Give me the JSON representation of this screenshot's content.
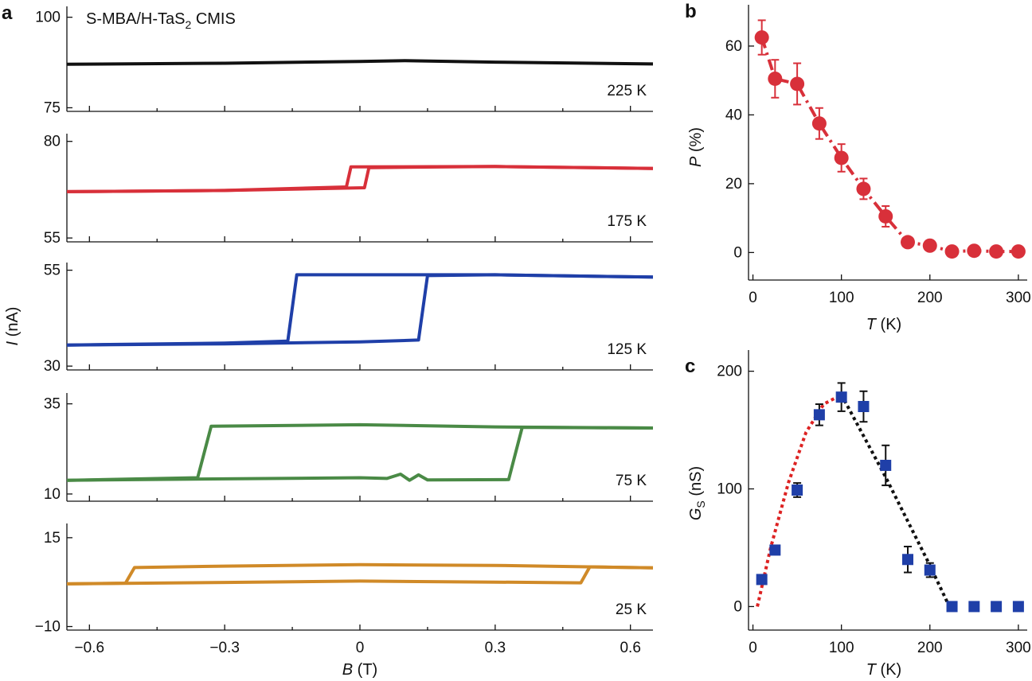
{
  "panels": {
    "a": "a",
    "b": "b",
    "c": "c"
  },
  "chart_data": [
    {
      "id": "a",
      "type": "line",
      "annotation": "S-MBA/H-TaS2 CMIS",
      "annotation_main": "S-MBA/H-TaS",
      "annotation_sub": "2",
      "annotation_tail": " CMIS",
      "xlabel_italic": "B",
      "xlabel_unit": " (T)",
      "ylabel_italic": "I",
      "ylabel_unit": " (nA)",
      "xlim": [
        -0.65,
        0.65
      ],
      "xticks": [
        -0.6,
        -0.3,
        0,
        0.3,
        0.6
      ],
      "xtick_labels": [
        "−0.6",
        "−0.3",
        "0",
        "0.3",
        "0.6"
      ],
      "subplots": [
        {
          "label": "225 K",
          "color": "#111111",
          "ylim": [
            74,
            103
          ],
          "yticks": [
            75,
            100
          ],
          "ytick_labels": [
            "75",
            "100"
          ],
          "sweep_up": [
            [
              -0.65,
              87.0
            ],
            [
              -0.3,
              87.3
            ],
            [
              0.0,
              87.8
            ],
            [
              0.1,
              88.0
            ],
            [
              0.3,
              87.6
            ],
            [
              0.65,
              87.1
            ]
          ],
          "sweep_down": []
        },
        {
          "label": "175 K",
          "color": "#d8303a",
          "ylim": [
            54,
            82
          ],
          "yticks": [
            55,
            80
          ],
          "ytick_labels": [
            "55",
            "80"
          ],
          "sweep_up": [
            [
              -0.65,
              67.0
            ],
            [
              -0.3,
              67.3
            ],
            [
              0.01,
              68.0
            ],
            [
              0.02,
              73.2
            ],
            [
              0.3,
              73.5
            ],
            [
              0.65,
              73.0
            ]
          ],
          "sweep_down": [
            [
              0.65,
              73.0
            ],
            [
              0.3,
              73.5
            ],
            [
              -0.02,
              73.4
            ],
            [
              -0.03,
              68.2
            ],
            [
              -0.3,
              67.3
            ],
            [
              -0.65,
              67.0
            ]
          ]
        },
        {
          "label": "125 K",
          "color": "#1f3fa8",
          "ylim": [
            29,
            57
          ],
          "yticks": [
            30,
            55
          ],
          "ytick_labels": [
            "30",
            "55"
          ],
          "sweep_up": [
            [
              -0.65,
              35.5
            ],
            [
              -0.3,
              35.8
            ],
            [
              0.0,
              36.3
            ],
            [
              0.13,
              36.8
            ],
            [
              0.15,
              53.6
            ],
            [
              0.3,
              53.8
            ],
            [
              0.65,
              53.2
            ]
          ],
          "sweep_down": [
            [
              0.65,
              53.2
            ],
            [
              0.3,
              53.8
            ],
            [
              0.0,
              53.8
            ],
            [
              -0.14,
              53.8
            ],
            [
              -0.16,
              36.5
            ],
            [
              -0.3,
              36.0
            ],
            [
              -0.65,
              35.5
            ]
          ]
        },
        {
          "label": "75 K",
          "color": "#4a8a46",
          "ylim": [
            8,
            38
          ],
          "yticks": [
            10,
            35
          ],
          "ytick_labels": [
            "10",
            "35"
          ],
          "sweep_up": [
            [
              -0.65,
              13.8
            ],
            [
              -0.3,
              14.2
            ],
            [
              0.0,
              14.5
            ],
            [
              0.06,
              14.3
            ],
            [
              0.09,
              15.5
            ],
            [
              0.11,
              13.8
            ],
            [
              0.13,
              15.3
            ],
            [
              0.15,
              13.9
            ],
            [
              0.33,
              14.0
            ],
            [
              0.36,
              28.5
            ],
            [
              0.65,
              28.3
            ]
          ],
          "sweep_down": [
            [
              0.65,
              28.3
            ],
            [
              0.3,
              28.6
            ],
            [
              0.0,
              29.2
            ],
            [
              -0.33,
              28.8
            ],
            [
              -0.36,
              14.5
            ],
            [
              -0.65,
              13.8
            ]
          ]
        },
        {
          "label": "25 K",
          "color": "#d08a28",
          "ylim": [
            -11,
            19
          ],
          "yticks": [
            -10,
            15
          ],
          "ytick_labels": [
            "−10",
            "15"
          ],
          "sweep_up": [
            [
              -0.65,
              2.0
            ],
            [
              -0.3,
              2.4
            ],
            [
              0.0,
              2.8
            ],
            [
              0.3,
              2.5
            ],
            [
              0.49,
              2.3
            ],
            [
              0.51,
              6.8
            ],
            [
              0.65,
              6.5
            ]
          ],
          "sweep_down": [
            [
              0.65,
              6.5
            ],
            [
              0.3,
              7.2
            ],
            [
              0.0,
              7.4
            ],
            [
              -0.3,
              7.0
            ],
            [
              -0.5,
              6.6
            ],
            [
              -0.52,
              2.2
            ],
            [
              -0.65,
              2.0
            ]
          ]
        }
      ]
    },
    {
      "id": "b",
      "type": "line",
      "xlabel_italic": "T",
      "xlabel_unit": " (K)",
      "ylabel_italic": "P",
      "ylabel_unit": " (%)",
      "xlim": [
        -5,
        310
      ],
      "ylim": [
        -8,
        72
      ],
      "xticks": [
        0,
        100,
        200,
        300
      ],
      "xtick_labels": [
        "0",
        "100",
        "200",
        "300"
      ],
      "yticks": [
        0,
        20,
        40,
        60
      ],
      "ytick_labels": [
        "0",
        "20",
        "40",
        "60"
      ],
      "color": "#d8303a",
      "x": [
        10,
        25,
        50,
        75,
        100,
        125,
        150,
        175,
        200,
        225,
        250,
        275,
        300
      ],
      "y": [
        62.5,
        50.5,
        49,
        37.5,
        27.5,
        18.5,
        10.5,
        3,
        2,
        0.3,
        0.5,
        0.3,
        0.3
      ],
      "err": [
        5,
        5.5,
        6,
        4.5,
        4,
        3,
        3,
        0,
        0,
        0,
        0,
        0,
        0
      ]
    },
    {
      "id": "c",
      "type": "scatter",
      "xlabel_italic": "T",
      "xlabel_unit": " (K)",
      "ylabel_main": "G",
      "ylabel_sub": "S",
      "ylabel_unit": " (nS)",
      "xlim": [
        -5,
        310
      ],
      "ylim": [
        -20,
        218
      ],
      "xticks": [
        0,
        100,
        200,
        300
      ],
      "xtick_labels": [
        "0",
        "100",
        "200",
        "300"
      ],
      "yticks": [
        0,
        100,
        200
      ],
      "ytick_labels": [
        "0",
        "100",
        "200"
      ],
      "color": "#1f3fa8",
      "x": [
        10,
        25,
        50,
        75,
        100,
        125,
        150,
        175,
        200,
        225,
        250,
        275,
        300
      ],
      "y": [
        23,
        48,
        99,
        163,
        178,
        170,
        120,
        40,
        31,
        0,
        0,
        0,
        0
      ],
      "err": [
        3,
        3,
        6,
        9,
        12,
        13,
        17,
        11,
        6,
        0,
        0,
        0,
        0
      ],
      "fit_rise": {
        "color": "#dd2222",
        "x": [
          5,
          20,
          40,
          60,
          80,
          100
        ],
        "y": [
          0,
          50,
          105,
          148,
          172,
          180
        ]
      },
      "fit_fall": {
        "color": "#111111",
        "x": [
          100,
          150,
          200,
          222
        ],
        "y": [
          180,
          110,
          35,
          0
        ]
      }
    }
  ]
}
